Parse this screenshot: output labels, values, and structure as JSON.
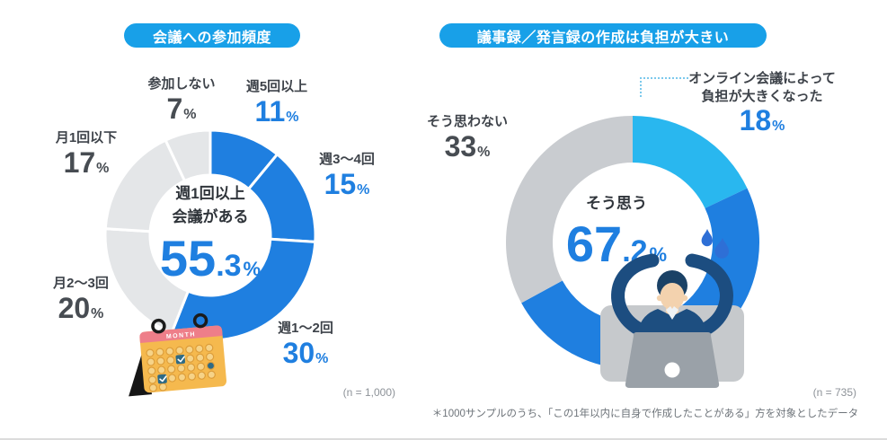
{
  "colors": {
    "blue": "#1f7fe0",
    "cyan": "#29b7ef",
    "gray_light": "#e4e6e8",
    "gray_mid": "#c9ccd0",
    "pill": "#18a0e8",
    "text_dark": "#3e434a",
    "text_gray": "#8d9298"
  },
  "chart_data": [
    {
      "type": "pie",
      "variant": "donut",
      "title": "会議への参加頻度",
      "legend_position": "callouts",
      "gap_between_slices": true,
      "center": {
        "lines": [
          "週1回以上",
          "会議がある"
        ],
        "value": 55.3,
        "value_int": "55",
        "value_dec": ".3",
        "unit": "%"
      },
      "segments": [
        {
          "label": "週5回以上",
          "value": 11,
          "display": "11",
          "unit": "%",
          "color": "blue"
        },
        {
          "label": "週3〜4回",
          "value": 15,
          "display": "15",
          "unit": "%",
          "color": "blue"
        },
        {
          "label": "週1〜2回",
          "value": 30,
          "display": "30",
          "unit": "%",
          "color": "blue"
        },
        {
          "label": "月2〜3回",
          "value": 20,
          "display": "20",
          "unit": "%",
          "color": "gray_light"
        },
        {
          "label": "月1回以下",
          "value": 17,
          "display": "17",
          "unit": "%",
          "color": "gray_light"
        },
        {
          "label": "参加しない",
          "value": 7,
          "display": "7",
          "unit": "%",
          "color": "gray_light"
        }
      ],
      "arcs": [
        {
          "value": 11,
          "color": "blue"
        },
        {
          "value": 15,
          "color": "blue"
        },
        {
          "value": 30,
          "color": "blue"
        },
        {
          "value": 20,
          "color": "gray_light"
        },
        {
          "value": 17,
          "color": "gray_light"
        },
        {
          "value": 7,
          "color": "gray_light"
        }
      ],
      "n_label": "(n = 1,000)"
    },
    {
      "type": "pie",
      "variant": "donut",
      "title": "議事録／発言録の作成は負担が大きい",
      "legend_position": "callouts",
      "gap_between_slices": false,
      "center": {
        "lines": [
          "そう思う"
        ],
        "value": 67.2,
        "value_int": "67",
        "value_dec": ".2",
        "unit": "%"
      },
      "segments": [
        {
          "label": "オンライン会議によって負担が大きくなった",
          "label_lines": [
            "オンライン会議によって",
            "負担が大きくなった"
          ],
          "value": 18,
          "display": "18",
          "unit": "%",
          "color": "cyan"
        },
        {
          "label": "そう思わない",
          "value": 33,
          "display": "33",
          "unit": "%",
          "color": "gray_mid"
        }
      ],
      "arcs": [
        {
          "value": 18,
          "color": "cyan"
        },
        {
          "value": 49.2,
          "color": "blue"
        },
        {
          "value": 33,
          "color": "gray_mid"
        }
      ],
      "n_label": "(n = 735)",
      "footnote": "＊1000サンプルのうち、「この1年以内に自身で作成したことがある」方を対象としたデータ"
    }
  ],
  "illustrations": {
    "calendar_header": "MONTH",
    "calendar": "desk-calendar-icon",
    "person": "stressed-person-at-laptop-icon",
    "drops": "sweat-drops-icon"
  }
}
